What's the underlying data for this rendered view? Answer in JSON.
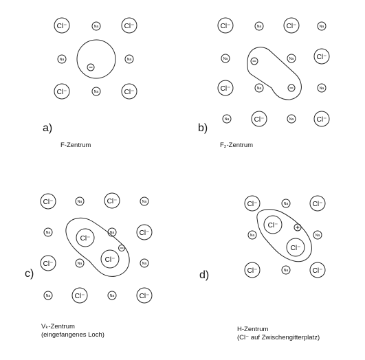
{
  "ion_labels": {
    "chlorine": "Cl⁻",
    "sodium": "Na"
  },
  "electron_symbol": "⊖",
  "hole_symbol": "⊕",
  "panels": {
    "a": {
      "letter": "a)",
      "caption_line1": "F-Zentrum",
      "lattice": [
        [
          "Cl",
          "Na",
          "Cl"
        ],
        [
          "Na",
          "vacancy",
          "Na"
        ],
        [
          "Cl",
          "Na",
          "Cl"
        ]
      ]
    },
    "b": {
      "letter": "b)",
      "caption_line1": "F₂-Zentrum",
      "lattice": [
        [
          "Cl",
          "Na",
          "Cl",
          "Na"
        ],
        [
          "Na",
          "vacancy",
          "Na",
          "Cl"
        ],
        [
          "Cl",
          "Na",
          "vacancy",
          "Na"
        ],
        [
          "Na",
          "Cl",
          "Na",
          "Cl"
        ]
      ]
    },
    "c": {
      "letter": "c)",
      "caption_line1": "Vₖ-Zentrum",
      "caption_line2": "(eingefangenes Loch)",
      "lattice": [
        [
          "Cl",
          "Na",
          "Cl",
          "Na"
        ],
        [
          "Na",
          "Cl",
          "Na",
          "Cl"
        ],
        [
          "Cl",
          "Na",
          "Cl",
          "Na"
        ],
        [
          "Na",
          "Cl",
          "Na",
          "Cl"
        ]
      ]
    },
    "d": {
      "letter": "d)",
      "caption_line1": "H-Zentrum",
      "caption_line2": "(Cl⁻ auf Zwischengitterplatz)",
      "lattice": [
        [
          "Cl",
          "Na",
          "Cl"
        ],
        [
          "Na",
          "Cl",
          "Cl",
          "Na"
        ],
        [
          "Cl",
          "Na",
          "Cl"
        ]
      ]
    }
  }
}
